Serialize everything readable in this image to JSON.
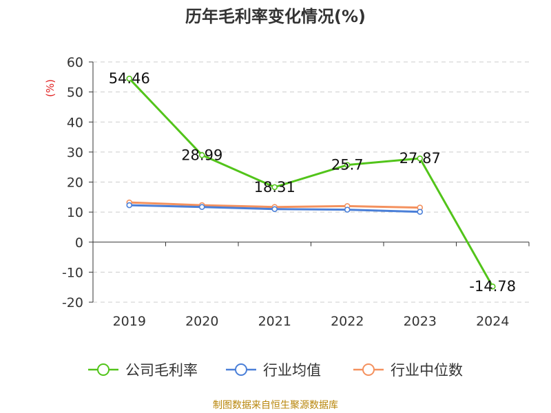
{
  "chart_data": {
    "type": "line",
    "title": "历年毛利率变化情况(%)",
    "ylabel": "(%)",
    "categories": [
      "2019",
      "2020",
      "2021",
      "2022",
      "2023",
      "2024"
    ],
    "ylim": [
      -20,
      60
    ],
    "yticks": [
      -20,
      -10,
      0,
      10,
      20,
      30,
      40,
      50,
      60
    ],
    "grid": true,
    "legend_position": "bottom",
    "series": [
      {
        "name": "公司毛利率",
        "color": "#52c41a",
        "values": [
          54.46,
          28.99,
          18.31,
          25.7,
          27.87,
          -14.78
        ],
        "show_labels": true
      },
      {
        "name": "行业均值",
        "color": "#4a7fd8",
        "values": [
          12.3,
          11.7,
          11.0,
          10.8,
          10.1,
          null
        ],
        "show_labels": false
      },
      {
        "name": "行业中位数",
        "color": "#f4915e",
        "values": [
          13.2,
          12.3,
          11.7,
          12.0,
          11.5,
          null
        ],
        "show_labels": false
      }
    ]
  },
  "source": "制图数据来自恒生聚源数据库"
}
